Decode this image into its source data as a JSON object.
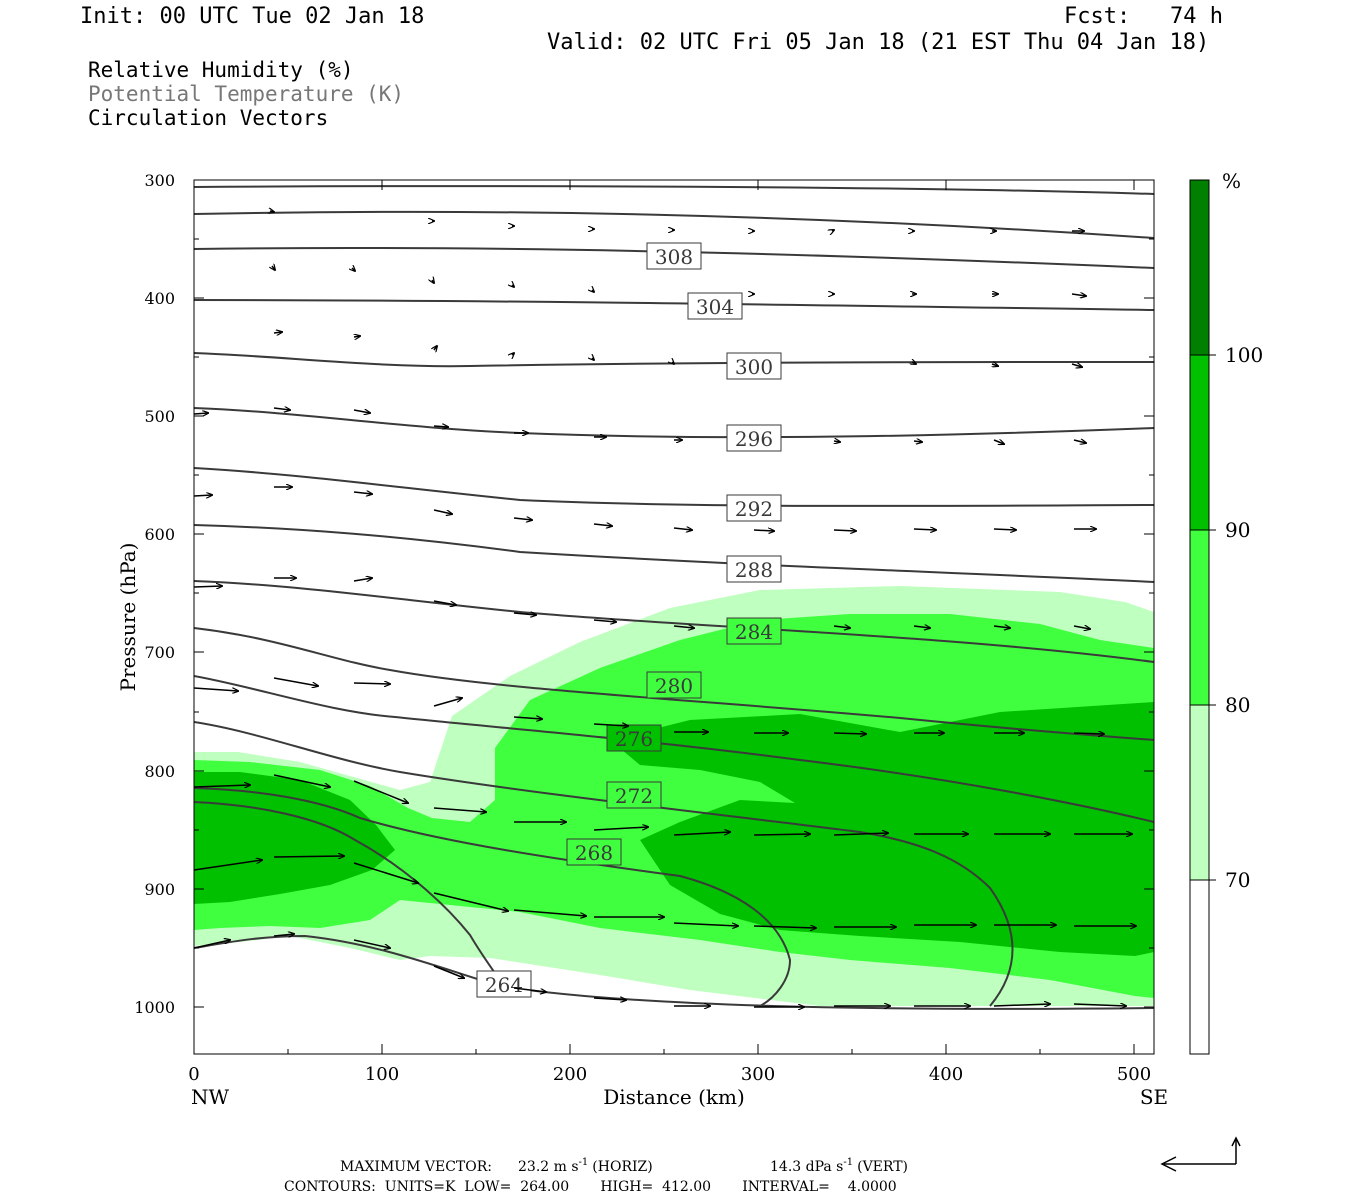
{
  "header": {
    "init": "Init: 00 UTC Tue 02 Jan 18",
    "fcst": "Fcst:   74 h",
    "valid": "Valid: 02 UTC Fri 05 Jan 18 (21 EST Thu 04 Jan 18)"
  },
  "legend": {
    "rh": "Relative Humidity (%)",
    "theta": "Potential Temperature (K)",
    "vectors": "Circulation Vectors"
  },
  "colors": {
    "rh70": "#bfffbf",
    "rh80": "#3fff3f",
    "rh90": "#00c000",
    "rh100": "#007f00",
    "theta": "#3a3a3a",
    "theta_label_gray": "#777777"
  },
  "chart_data": {
    "type": "contour",
    "ylabel": "Pressure (hPa)",
    "xlabel": "Distance (km)",
    "x_left_label": "NW",
    "x_right_label": "SE",
    "xlim": [
      0,
      512
    ],
    "ylim": [
      1040,
      300
    ],
    "xticks": [
      "0",
      "100",
      "200",
      "300",
      "400",
      "500"
    ],
    "yticks": [
      "300",
      "400",
      "500",
      "600",
      "700",
      "800",
      "900",
      "1000"
    ],
    "colorbar": {
      "unit": "%",
      "levels": [
        "100",
        "90",
        "80",
        "70"
      ]
    },
    "theta_contours": [
      {
        "label": "308",
        "x": 256,
        "p": 365
      },
      {
        "label": "304",
        "x": 278,
        "p": 406
      },
      {
        "label": "300",
        "x": 299,
        "p": 456
      },
      {
        "label": "296",
        "x": 299,
        "p": 517
      },
      {
        "label": "292",
        "x": 299,
        "p": 576
      },
      {
        "label": "288",
        "x": 299,
        "p": 631
      },
      {
        "label": "284",
        "x": 299,
        "p": 683
      },
      {
        "label": "280",
        "x": 256,
        "p": 731
      },
      {
        "label": "276",
        "x": 234,
        "p": 776
      },
      {
        "label": "272",
        "x": 234,
        "p": 821
      },
      {
        "label": "268",
        "x": 213,
        "p": 866
      },
      {
        "label": "264",
        "x": 165,
        "p": 982
      }
    ]
  },
  "footer": {
    "max_vector_label": "MAXIMUM VECTOR:",
    "horiz_value": "23.2 m s",
    "horiz_sup": "-1",
    "horiz_tag": "(HORIZ)",
    "vert_value": "14.3 dPa s",
    "vert_sup": "-1",
    "vert_tag": "(VERT)",
    "contours_line": "CONTOURS:  UNITS=K  LOW=  264.00       HIGH=  412.00       INTERVAL=    4.0000"
  }
}
